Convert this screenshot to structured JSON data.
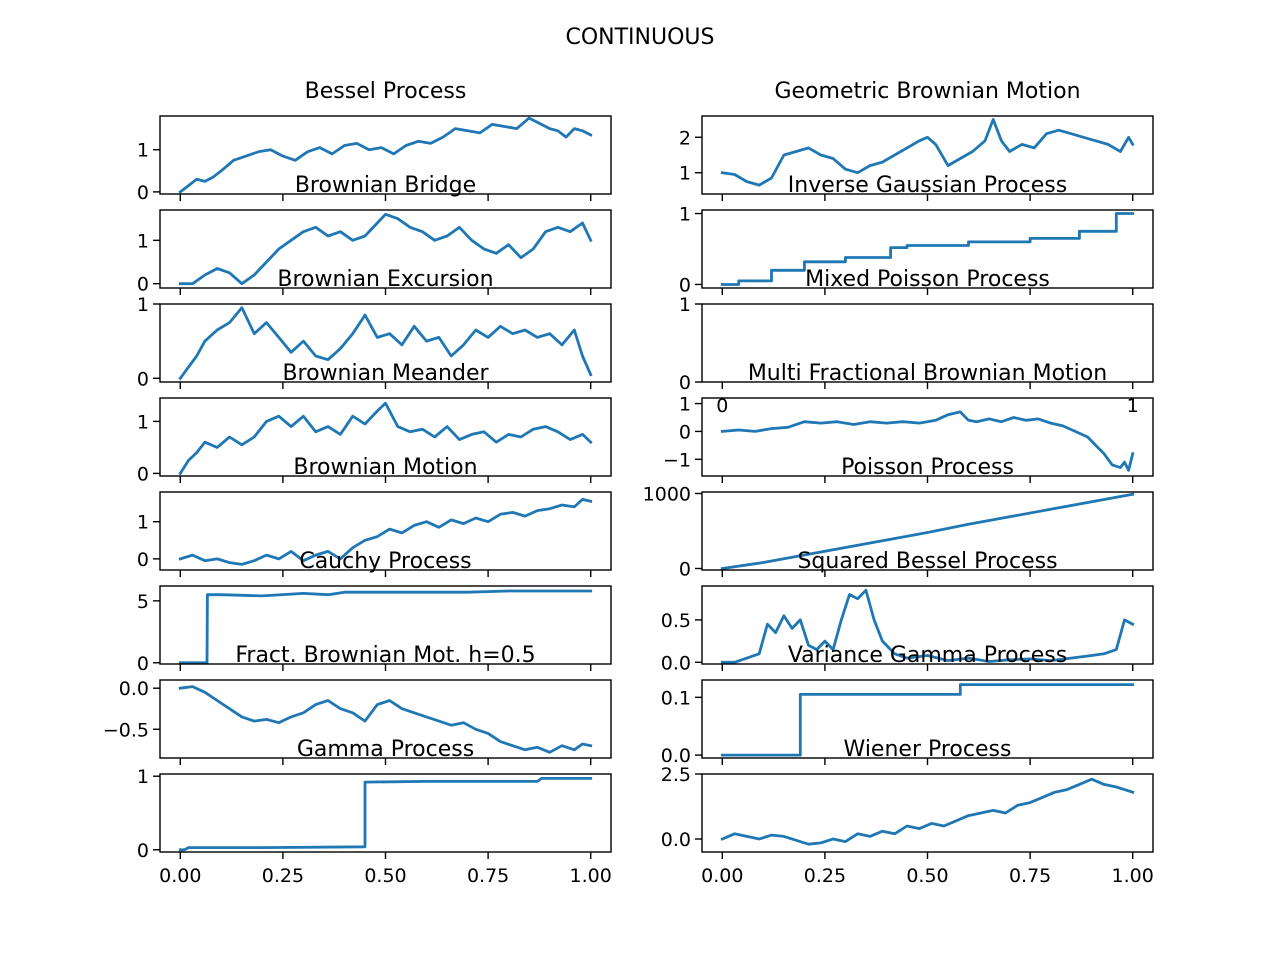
{
  "figure": {
    "title": "CONTINUOUS",
    "line_color": "#1f77b4"
  },
  "chart_data": [
    {
      "type": "line",
      "title": "Bessel Process",
      "xlim": [
        0,
        1
      ],
      "ylim": [
        -0.05,
        1.8
      ],
      "yticks": [
        0,
        1
      ],
      "xticks": [],
      "x": [
        0,
        0.02,
        0.04,
        0.06,
        0.08,
        0.1,
        0.13,
        0.16,
        0.19,
        0.22,
        0.25,
        0.28,
        0.31,
        0.34,
        0.37,
        0.4,
        0.43,
        0.46,
        0.49,
        0.52,
        0.55,
        0.58,
        0.61,
        0.64,
        0.67,
        0.7,
        0.73,
        0.76,
        0.79,
        0.82,
        0.85,
        0.88,
        0.9,
        0.92,
        0.94,
        0.96,
        0.98,
        1.0
      ],
      "y": [
        0.0,
        0.15,
        0.3,
        0.25,
        0.35,
        0.5,
        0.75,
        0.85,
        0.95,
        1.0,
        0.85,
        0.75,
        0.95,
        1.05,
        0.9,
        1.1,
        1.15,
        1.0,
        1.05,
        0.9,
        1.1,
        1.2,
        1.15,
        1.3,
        1.5,
        1.45,
        1.4,
        1.6,
        1.55,
        1.5,
        1.75,
        1.6,
        1.5,
        1.45,
        1.3,
        1.5,
        1.45,
        1.35
      ]
    },
    {
      "type": "line",
      "title": "Geometric Brownian Motion",
      "xlim": [
        0,
        1
      ],
      "ylim": [
        0.4,
        2.6
      ],
      "yticks": [
        1,
        2
      ],
      "xticks": [],
      "x": [
        0,
        0.03,
        0.06,
        0.09,
        0.12,
        0.15,
        0.18,
        0.21,
        0.24,
        0.27,
        0.3,
        0.33,
        0.36,
        0.39,
        0.42,
        0.45,
        0.48,
        0.5,
        0.52,
        0.55,
        0.58,
        0.61,
        0.64,
        0.66,
        0.68,
        0.7,
        0.73,
        0.76,
        0.79,
        0.82,
        0.85,
        0.88,
        0.91,
        0.94,
        0.97,
        0.99,
        1.0
      ],
      "y": [
        1.0,
        0.95,
        0.75,
        0.65,
        0.85,
        1.5,
        1.6,
        1.7,
        1.5,
        1.4,
        1.1,
        1.0,
        1.2,
        1.3,
        1.5,
        1.7,
        1.9,
        2.0,
        1.8,
        1.2,
        1.4,
        1.6,
        1.9,
        2.5,
        1.9,
        1.6,
        1.8,
        1.7,
        2.1,
        2.2,
        2.1,
        2.0,
        1.9,
        1.8,
        1.6,
        2.0,
        1.8
      ]
    },
    {
      "type": "line",
      "title": "Brownian Bridge",
      "xlim": [
        0,
        1
      ],
      "ylim": [
        -0.1,
        1.7
      ],
      "yticks": [
        0,
        1
      ],
      "xticks": [],
      "x": [
        0,
        0.03,
        0.06,
        0.09,
        0.12,
        0.15,
        0.18,
        0.21,
        0.24,
        0.27,
        0.3,
        0.33,
        0.36,
        0.39,
        0.42,
        0.45,
        0.48,
        0.5,
        0.53,
        0.56,
        0.59,
        0.62,
        0.65,
        0.68,
        0.71,
        0.74,
        0.77,
        0.8,
        0.83,
        0.86,
        0.89,
        0.92,
        0.95,
        0.98,
        1.0
      ],
      "y": [
        0.0,
        0.0,
        0.2,
        0.35,
        0.25,
        0.0,
        0.2,
        0.5,
        0.8,
        1.0,
        1.2,
        1.3,
        1.1,
        1.2,
        1.0,
        1.1,
        1.4,
        1.6,
        1.5,
        1.3,
        1.2,
        1.0,
        1.1,
        1.3,
        1.0,
        0.8,
        0.7,
        0.9,
        0.6,
        0.8,
        1.2,
        1.3,
        1.2,
        1.4,
        1.0
      ]
    },
    {
      "type": "line",
      "title": "Inverse Gaussian Process",
      "xlim": [
        0,
        1
      ],
      "ylim": [
        -0.05,
        1.05
      ],
      "yticks": [
        0,
        1
      ],
      "xticks": [],
      "x": [
        0,
        0.04,
        0.04,
        0.12,
        0.12,
        0.2,
        0.2,
        0.3,
        0.3,
        0.41,
        0.41,
        0.45,
        0.45,
        0.6,
        0.6,
        0.75,
        0.75,
        0.87,
        0.87,
        0.96,
        0.96,
        1.0
      ],
      "y": [
        0,
        0,
        0.05,
        0.05,
        0.2,
        0.2,
        0.32,
        0.32,
        0.38,
        0.38,
        0.52,
        0.52,
        0.55,
        0.55,
        0.6,
        0.6,
        0.65,
        0.65,
        0.75,
        0.75,
        1.0,
        1.0
      ]
    },
    {
      "type": "line",
      "title": "Brownian Excursion",
      "xlim": [
        0,
        1
      ],
      "ylim": [
        -0.05,
        1.0
      ],
      "yticks": [
        0,
        1
      ],
      "xticks": [],
      "x": [
        0,
        0.02,
        0.04,
        0.06,
        0.09,
        0.12,
        0.15,
        0.18,
        0.21,
        0.24,
        0.27,
        0.3,
        0.33,
        0.36,
        0.39,
        0.42,
        0.45,
        0.48,
        0.51,
        0.54,
        0.57,
        0.6,
        0.63,
        0.66,
        0.69,
        0.72,
        0.75,
        0.78,
        0.81,
        0.84,
        0.87,
        0.9,
        0.93,
        0.96,
        0.98,
        1.0
      ],
      "y": [
        0.0,
        0.15,
        0.3,
        0.5,
        0.65,
        0.75,
        0.95,
        0.6,
        0.75,
        0.55,
        0.35,
        0.5,
        0.3,
        0.25,
        0.4,
        0.6,
        0.85,
        0.55,
        0.6,
        0.45,
        0.7,
        0.5,
        0.55,
        0.3,
        0.45,
        0.65,
        0.55,
        0.7,
        0.6,
        0.65,
        0.55,
        0.6,
        0.45,
        0.65,
        0.3,
        0.05
      ]
    },
    {
      "type": "line",
      "title": "Mixed Poisson Process",
      "xlim": [
        0,
        1
      ],
      "ylim": [
        0,
        1
      ],
      "yticks": [
        0,
        1
      ],
      "xticks": [
        0,
        1
      ],
      "x": [],
      "y": []
    },
    {
      "type": "line",
      "title": "Brownian Meander",
      "xlim": [
        0,
        1
      ],
      "ylim": [
        -0.05,
        1.45
      ],
      "yticks": [
        0,
        1
      ],
      "xticks": [],
      "x": [
        0,
        0.02,
        0.04,
        0.06,
        0.09,
        0.12,
        0.15,
        0.18,
        0.21,
        0.24,
        0.27,
        0.3,
        0.33,
        0.36,
        0.39,
        0.42,
        0.45,
        0.48,
        0.5,
        0.53,
        0.56,
        0.59,
        0.62,
        0.65,
        0.68,
        0.71,
        0.74,
        0.77,
        0.8,
        0.83,
        0.86,
        0.89,
        0.92,
        0.95,
        0.98,
        1.0
      ],
      "y": [
        0.0,
        0.25,
        0.4,
        0.6,
        0.5,
        0.7,
        0.55,
        0.7,
        1.0,
        1.1,
        0.9,
        1.1,
        0.8,
        0.9,
        0.75,
        1.1,
        0.95,
        1.2,
        1.35,
        0.9,
        0.8,
        0.85,
        0.7,
        0.9,
        0.65,
        0.75,
        0.8,
        0.6,
        0.75,
        0.7,
        0.85,
        0.9,
        0.8,
        0.65,
        0.75,
        0.6
      ]
    },
    {
      "type": "line",
      "title": "Multi Fractional Brownian Motion",
      "xlim": [
        0,
        1
      ],
      "ylim": [
        -1.6,
        1.2
      ],
      "yticks": [
        -1,
        0,
        1
      ],
      "xticks": [],
      "x": [
        0,
        0.04,
        0.08,
        0.12,
        0.16,
        0.2,
        0.24,
        0.28,
        0.32,
        0.36,
        0.4,
        0.44,
        0.48,
        0.52,
        0.55,
        0.58,
        0.6,
        0.62,
        0.65,
        0.68,
        0.71,
        0.74,
        0.77,
        0.8,
        0.83,
        0.86,
        0.89,
        0.91,
        0.93,
        0.95,
        0.97,
        0.98,
        0.99,
        1.0
      ],
      "y": [
        0.0,
        0.05,
        0.0,
        0.1,
        0.15,
        0.35,
        0.3,
        0.35,
        0.25,
        0.35,
        0.3,
        0.35,
        0.3,
        0.4,
        0.6,
        0.7,
        0.4,
        0.35,
        0.45,
        0.35,
        0.5,
        0.4,
        0.45,
        0.3,
        0.2,
        0.0,
        -0.2,
        -0.5,
        -0.8,
        -1.2,
        -1.3,
        -1.1,
        -1.4,
        -0.8
      ]
    },
    {
      "type": "line",
      "title": "Brownian Motion",
      "xlim": [
        0,
        1
      ],
      "ylim": [
        -0.3,
        1.8
      ],
      "yticks": [
        0,
        1
      ],
      "xticks": [],
      "x": [
        0,
        0.03,
        0.06,
        0.09,
        0.12,
        0.15,
        0.18,
        0.21,
        0.24,
        0.27,
        0.3,
        0.33,
        0.36,
        0.39,
        0.42,
        0.45,
        0.48,
        0.51,
        0.54,
        0.57,
        0.6,
        0.63,
        0.66,
        0.69,
        0.72,
        0.75,
        0.78,
        0.81,
        0.84,
        0.87,
        0.9,
        0.93,
        0.96,
        0.98,
        1.0
      ],
      "y": [
        0.0,
        0.1,
        -0.05,
        0.0,
        -0.1,
        -0.15,
        -0.05,
        0.1,
        0.0,
        0.2,
        -0.05,
        0.1,
        0.2,
        0.0,
        0.3,
        0.5,
        0.6,
        0.8,
        0.7,
        0.9,
        1.0,
        0.85,
        1.05,
        0.95,
        1.1,
        1.0,
        1.2,
        1.25,
        1.15,
        1.3,
        1.35,
        1.45,
        1.4,
        1.6,
        1.55
      ]
    },
    {
      "type": "line",
      "title": "Poisson Process",
      "xlim": [
        0,
        1
      ],
      "ylim": [
        -20,
        1020
      ],
      "yticks": [
        0,
        1000
      ],
      "xticks": [],
      "x": [
        0,
        0.1,
        0.2,
        0.3,
        0.4,
        0.5,
        0.6,
        0.7,
        0.8,
        0.9,
        1.0
      ],
      "y": [
        0,
        80,
        180,
        280,
        380,
        480,
        590,
        690,
        790,
        890,
        990
      ]
    },
    {
      "type": "line",
      "title": "Cauchy Process",
      "xlim": [
        0,
        1
      ],
      "ylim": [
        -0.1,
        6.2
      ],
      "yticks": [
        0,
        5
      ],
      "xticks": [],
      "x": [
        0,
        0.065,
        0.066,
        0.1,
        0.2,
        0.3,
        0.36,
        0.4,
        0.5,
        0.6,
        0.7,
        0.8,
        0.9,
        1.0
      ],
      "y": [
        0,
        0,
        5.5,
        5.5,
        5.4,
        5.6,
        5.5,
        5.7,
        5.7,
        5.7,
        5.7,
        5.8,
        5.8,
        5.8
      ]
    },
    {
      "type": "line",
      "title": "Squared Bessel Process",
      "xlim": [
        0,
        1
      ],
      "ylim": [
        -0.02,
        0.9
      ],
      "yticks": [
        0.0,
        0.5
      ],
      "xticks": [],
      "x": [
        0,
        0.03,
        0.06,
        0.09,
        0.11,
        0.13,
        0.15,
        0.17,
        0.19,
        0.21,
        0.23,
        0.25,
        0.27,
        0.29,
        0.31,
        0.33,
        0.35,
        0.37,
        0.39,
        0.42,
        0.45,
        0.5,
        0.55,
        0.6,
        0.65,
        0.7,
        0.75,
        0.8,
        0.85,
        0.9,
        0.93,
        0.96,
        0.98,
        1.0
      ],
      "y": [
        0.0,
        0.0,
        0.05,
        0.1,
        0.45,
        0.35,
        0.55,
        0.4,
        0.5,
        0.2,
        0.15,
        0.25,
        0.15,
        0.5,
        0.8,
        0.75,
        0.85,
        0.5,
        0.25,
        0.1,
        0.05,
        0.08,
        0.02,
        0.05,
        0.01,
        0.03,
        0.04,
        0.02,
        0.05,
        0.08,
        0.1,
        0.15,
        0.5,
        0.45
      ]
    },
    {
      "type": "line",
      "title": "Fract. Brownian Mot. h=0.5",
      "xlim": [
        0,
        1
      ],
      "ylim": [
        -0.85,
        0.1
      ],
      "yticks": [
        0.0,
        -0.5
      ],
      "xticks": [],
      "x": [
        0,
        0.03,
        0.06,
        0.09,
        0.12,
        0.15,
        0.18,
        0.21,
        0.24,
        0.27,
        0.3,
        0.33,
        0.36,
        0.39,
        0.42,
        0.45,
        0.48,
        0.51,
        0.54,
        0.57,
        0.6,
        0.63,
        0.66,
        0.69,
        0.72,
        0.75,
        0.78,
        0.81,
        0.84,
        0.87,
        0.9,
        0.93,
        0.96,
        0.98,
        1.0
      ],
      "y": [
        0.0,
        0.02,
        -0.05,
        -0.15,
        -0.25,
        -0.35,
        -0.4,
        -0.38,
        -0.42,
        -0.35,
        -0.3,
        -0.2,
        -0.15,
        -0.25,
        -0.3,
        -0.4,
        -0.2,
        -0.15,
        -0.25,
        -0.3,
        -0.35,
        -0.4,
        -0.45,
        -0.42,
        -0.5,
        -0.55,
        -0.65,
        -0.7,
        -0.75,
        -0.72,
        -0.78,
        -0.7,
        -0.75,
        -0.68,
        -0.7
      ]
    },
    {
      "type": "line",
      "title": "Variance Gamma Process",
      "xlim": [
        0,
        1
      ],
      "ylim": [
        -0.005,
        0.13
      ],
      "yticks": [
        0.0,
        0.1
      ],
      "xticks": [],
      "x": [
        0,
        0.19,
        0.19,
        0.58,
        0.58,
        1.0
      ],
      "y": [
        0,
        0,
        0.105,
        0.105,
        0.122,
        0.122
      ]
    },
    {
      "type": "line",
      "title": "Gamma Process",
      "xlim": [
        0,
        1
      ],
      "ylim": [
        -0.03,
        1.03
      ],
      "yticks": [
        0,
        1
      ],
      "xticks": [
        0.0,
        0.25,
        0.5,
        0.75,
        1.0
      ],
      "x": [
        0,
        0.01,
        0.02,
        0.2,
        0.45,
        0.45,
        0.6,
        0.8,
        0.87,
        0.88,
        1.0
      ],
      "y": [
        0,
        0,
        0.03,
        0.03,
        0.04,
        0.92,
        0.93,
        0.93,
        0.93,
        0.97,
        0.97
      ]
    },
    {
      "type": "line",
      "title": "Wiener Process",
      "xlim": [
        0,
        1
      ],
      "ylim": [
        -0.5,
        2.5
      ],
      "yticks": [
        0.0,
        2.5
      ],
      "xticks": [
        0.0,
        0.25,
        0.5,
        0.75,
        1.0
      ],
      "x": [
        0,
        0.03,
        0.06,
        0.09,
        0.12,
        0.15,
        0.18,
        0.21,
        0.24,
        0.27,
        0.3,
        0.33,
        0.36,
        0.39,
        0.42,
        0.45,
        0.48,
        0.51,
        0.54,
        0.57,
        0.6,
        0.63,
        0.66,
        0.69,
        0.72,
        0.75,
        0.78,
        0.81,
        0.84,
        0.87,
        0.9,
        0.93,
        0.96,
        0.98,
        1.0
      ],
      "y": [
        0.0,
        0.2,
        0.1,
        0.0,
        0.15,
        0.1,
        -0.05,
        -0.2,
        -0.15,
        0.0,
        -0.1,
        0.2,
        0.1,
        0.3,
        0.2,
        0.5,
        0.4,
        0.6,
        0.5,
        0.7,
        0.9,
        1.0,
        1.1,
        1.0,
        1.3,
        1.4,
        1.6,
        1.8,
        1.9,
        2.1,
        2.3,
        2.1,
        2.0,
        1.9,
        1.8
      ]
    }
  ]
}
